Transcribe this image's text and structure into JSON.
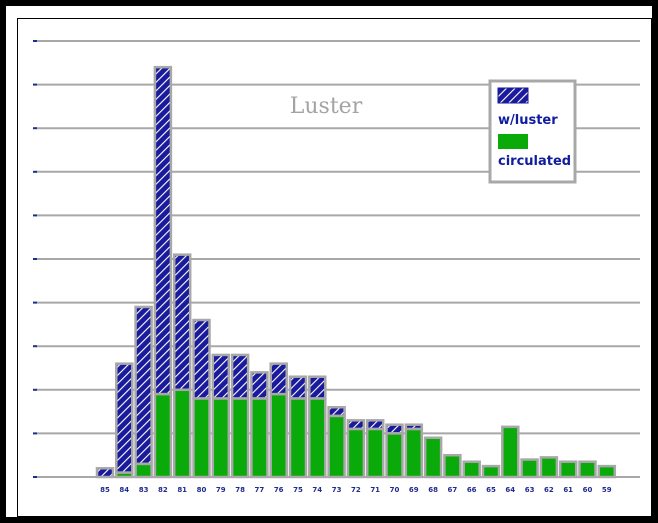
{
  "chart_data": {
    "type": "bar",
    "title": "Luster",
    "categories": [
      "85",
      "84",
      "83",
      "82",
      "81",
      "80",
      "79",
      "78",
      "77",
      "76",
      "75",
      "74",
      "73",
      "72",
      "71",
      "70",
      "69",
      "68",
      "67",
      "66",
      "65",
      "64",
      "63",
      "62",
      "61",
      "60",
      "59"
    ],
    "series": [
      {
        "name": "w/luster",
        "values": [
          0.2,
          2.6,
          3.9,
          9.4,
          5.1,
          3.6,
          2.8,
          2.8,
          2.4,
          2.6,
          2.3,
          2.3,
          1.6,
          1.3,
          1.3,
          1.2,
          1.2,
          0.0,
          0.0,
          0.0,
          0.0,
          0.0,
          0.0,
          0.0,
          0.0,
          0.0,
          0.0
        ]
      },
      {
        "name": "circulated",
        "values": [
          0.0,
          0.1,
          0.3,
          1.9,
          2.0,
          1.8,
          1.8,
          1.8,
          1.8,
          1.9,
          1.8,
          1.8,
          1.4,
          1.1,
          1.1,
          1.0,
          1.1,
          0.9,
          0.5,
          0.35,
          0.25,
          1.15,
          0.4,
          0.45,
          0.35,
          0.35,
          0.25
        ]
      }
    ],
    "ylim": [
      0,
      10
    ],
    "grid": true,
    "legend_position": "top-right",
    "colors": {
      "w_luster": "#1a1a9c",
      "circulated": "#0aaa0a",
      "bar_edge": "#a8a8a8",
      "grid": "#a8a8a8",
      "axis_ticks": "#1f2c8f"
    }
  }
}
